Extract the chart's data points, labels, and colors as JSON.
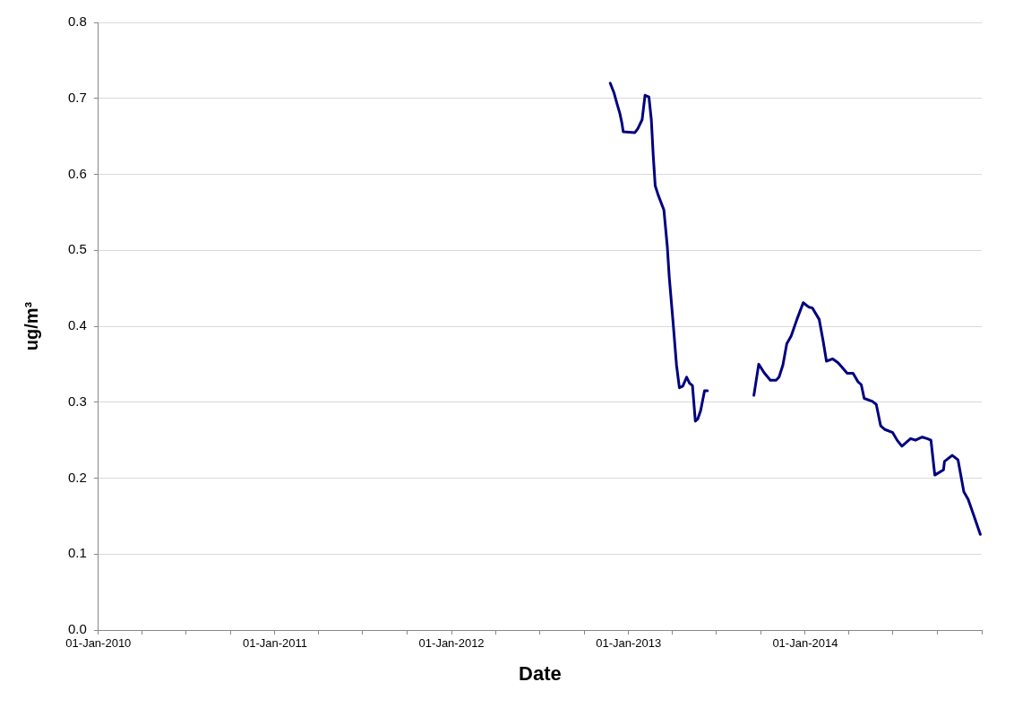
{
  "chart_data": {
    "type": "line",
    "xlabel": "Date",
    "ylabel": "ug/m³",
    "x": [
      "2012-11-24",
      "2012-12-02",
      "2012-12-08",
      "2012-12-14",
      "2012-12-18",
      "2012-12-21",
      "2013-01-14",
      "2013-01-20",
      "2013-01-29",
      "2013-02-04",
      "2013-02-12",
      "2013-02-17",
      "2013-02-21",
      "2013-02-25",
      "2013-03-03",
      "2013-03-15",
      "2013-03-22",
      "2013-03-26",
      "2013-04-03",
      "2013-04-10",
      "2013-04-16",
      "2013-04-23",
      "2013-05-01",
      "2013-05-07",
      "2013-05-13",
      "2013-05-19",
      "2013-05-24",
      "2013-05-30",
      "2013-06-07",
      "2013-06-13",
      "2013-08-01",
      "2013-09-17",
      "2013-09-27",
      "2013-10-08",
      "2013-10-21",
      "2013-11-02",
      "2013-11-08",
      "2013-11-16",
      "2013-11-24",
      "2013-12-03",
      "2013-12-15",
      "2013-12-28",
      "2014-01-09",
      "2014-01-16",
      "2014-01-30",
      "2014-02-07",
      "2014-02-14",
      "2014-02-27",
      "2014-03-10",
      "2014-03-29",
      "2014-04-10",
      "2014-04-20",
      "2014-04-27",
      "2014-05-03",
      "2014-05-20",
      "2014-05-28",
      "2014-06-06",
      "2014-06-15",
      "2014-07-01",
      "2014-07-10",
      "2014-07-20",
      "2014-08-07",
      "2014-08-17",
      "2014-08-31",
      "2014-09-10",
      "2014-09-18",
      "2014-09-26",
      "2014-10-14",
      "2014-10-16",
      "2014-11-01",
      "2014-11-13",
      "2014-11-25",
      "2014-12-04",
      "2014-12-15",
      "2014-12-29"
    ],
    "series": [
      {
        "color": "#000080",
        "values": [
          0.72,
          0.707,
          0.693,
          0.68,
          0.668,
          0.656,
          0.655,
          0.66,
          0.672,
          0.704,
          0.702,
          0.672,
          0.624,
          0.585,
          0.573,
          0.553,
          0.505,
          0.465,
          0.405,
          0.349,
          0.319,
          0.321,
          0.333,
          0.325,
          0.322,
          0.275,
          0.278,
          0.289,
          0.315,
          0.315,
          null,
          0.309,
          0.35,
          0.339,
          0.329,
          0.329,
          0.333,
          0.349,
          0.377,
          0.387,
          0.409,
          0.431,
          0.425,
          0.424,
          0.409,
          0.381,
          0.354,
          0.357,
          0.352,
          0.338,
          0.338,
          0.327,
          0.323,
          0.305,
          0.301,
          0.297,
          0.269,
          0.264,
          0.26,
          0.25,
          0.242,
          0.252,
          0.25,
          0.254,
          0.252,
          0.25,
          0.204,
          0.211,
          0.222,
          0.23,
          0.224,
          0.182,
          0.172,
          0.152,
          0.126
        ]
      }
    ],
    "xlim": [
      "2010-01-01",
      "2015-01-01"
    ],
    "xticks": [
      {
        "value": "2010-01-01",
        "label": "01-Jan-2010"
      },
      {
        "value": "2010-04-01",
        "label": null
      },
      {
        "value": "2010-07-01",
        "label": null
      },
      {
        "value": "2010-10-01",
        "label": null
      },
      {
        "value": "2011-01-01",
        "label": "01-Jan-2011"
      },
      {
        "value": "2011-04-01",
        "label": null
      },
      {
        "value": "2011-07-01",
        "label": null
      },
      {
        "value": "2011-10-01",
        "label": null
      },
      {
        "value": "2012-01-01",
        "label": "01-Jan-2012"
      },
      {
        "value": "2012-04-01",
        "label": null
      },
      {
        "value": "2012-07-01",
        "label": null
      },
      {
        "value": "2012-10-01",
        "label": null
      },
      {
        "value": "2013-01-01",
        "label": "01-Jan-2013"
      },
      {
        "value": "2013-04-01",
        "label": null
      },
      {
        "value": "2013-07-01",
        "label": null
      },
      {
        "value": "2013-10-01",
        "label": null
      },
      {
        "value": "2014-01-01",
        "label": "01-Jan-2014"
      },
      {
        "value": "2014-04-01",
        "label": null
      },
      {
        "value": "2014-07-01",
        "label": null
      },
      {
        "value": "2014-10-01",
        "label": null
      },
      {
        "value": "2015-01-01",
        "label": null
      }
    ],
    "ylim": [
      0,
      0.8
    ],
    "yticks": [
      {
        "value": 0,
        "label": "0.0"
      },
      {
        "value": 0.1,
        "label": "0.1"
      },
      {
        "value": 0.2,
        "label": "0.2"
      },
      {
        "value": 0.3,
        "label": "0.3"
      },
      {
        "value": 0.4,
        "label": "0.4"
      },
      {
        "value": 0.5,
        "label": "0.5"
      },
      {
        "value": 0.6,
        "label": "0.6"
      },
      {
        "value": 0.7,
        "label": "0.7"
      },
      {
        "value": 0.8,
        "label": "0.8"
      }
    ],
    "grid": "y",
    "marker": "none",
    "line_style": "solid"
  }
}
